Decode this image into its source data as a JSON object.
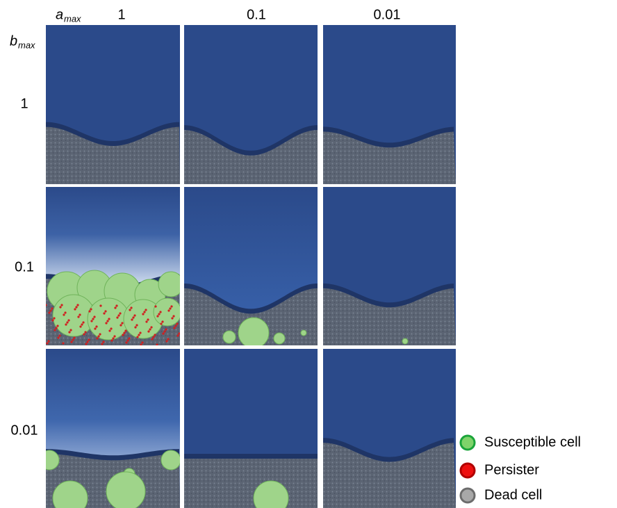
{
  "header": {
    "column_symbol": "a",
    "column_subscript": "max",
    "row_symbol": "b",
    "row_subscript": "max"
  },
  "columns": [
    "1",
    "0.1",
    "0.01"
  ],
  "rows": [
    "1",
    "0.1",
    "0.01"
  ],
  "legend": [
    "Susceptible cell",
    "Persister",
    "Dead cell"
  ]
}
